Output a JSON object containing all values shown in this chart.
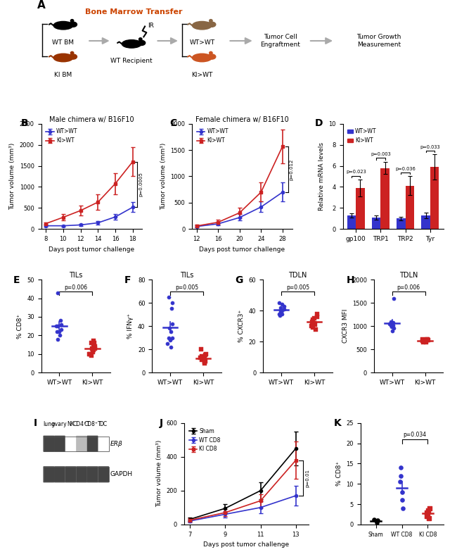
{
  "panel_B": {
    "title": "Male chimera w/ B16F10",
    "xlabel": "Days post tumor challenge",
    "ylabel": "Tumor volume (mm³)",
    "days": [
      8,
      10,
      12,
      14,
      16,
      18
    ],
    "WT_mean": [
      80,
      80,
      100,
      150,
      290,
      520
    ],
    "WT_err": [
      20,
      15,
      20,
      40,
      60,
      120
    ],
    "KI_mean": [
      130,
      280,
      440,
      640,
      1080,
      1600
    ],
    "KI_err": [
      30,
      80,
      120,
      180,
      250,
      350
    ],
    "pval": "p=0.0005",
    "ylim": [
      0,
      2500
    ],
    "yticks": [
      0,
      500,
      1000,
      1500,
      2000,
      2500
    ]
  },
  "panel_C": {
    "title": "Female chimera w/ B16F10",
    "xlabel": "Days post tumor challenge",
    "ylabel": "Tumor volume (mm³)",
    "days": [
      12,
      16,
      20,
      24,
      28
    ],
    "WT_mean": [
      50,
      100,
      220,
      420,
      700
    ],
    "WT_err": [
      20,
      30,
      60,
      100,
      180
    ],
    "KI_mean": [
      60,
      130,
      310,
      700,
      1570
    ],
    "KI_err": [
      20,
      50,
      90,
      180,
      320
    ],
    "pval": "p=0.012",
    "ylim": [
      0,
      2000
    ],
    "yticks": [
      0,
      500,
      1000,
      1500,
      2000
    ]
  },
  "panel_D": {
    "title": "",
    "xlabel": "",
    "ylabel": "Relative mRNA levels",
    "categories": [
      "gp100",
      "TRP1",
      "TRP2",
      "Tyr"
    ],
    "WT_mean": [
      1.3,
      1.1,
      1.0,
      1.3
    ],
    "WT_err": [
      0.2,
      0.2,
      0.15,
      0.25
    ],
    "KI_mean": [
      3.9,
      5.8,
      4.1,
      5.9
    ],
    "KI_err": [
      0.8,
      0.6,
      0.9,
      1.2
    ],
    "pvals": [
      "p=0.023",
      "p=0.003",
      "p=0.036",
      "p=0.033"
    ],
    "ylim": [
      0,
      10
    ],
    "yticks": [
      0,
      2,
      4,
      6,
      8,
      10
    ]
  },
  "panel_E": {
    "title": "TILs",
    "ylabel": "% CD8⁺",
    "ylim": [
      0,
      50
    ],
    "yticks": [
      0,
      10,
      20,
      30,
      40,
      50
    ],
    "pval": "p=0.006",
    "WT_points": [
      23,
      25,
      20,
      28,
      22,
      25,
      18,
      26,
      43,
      22
    ],
    "KI_points": [
      12,
      14,
      10,
      13,
      16,
      11,
      15,
      9,
      13,
      17,
      12,
      10,
      16
    ]
  },
  "panel_F": {
    "title": "TILs",
    "ylabel": "% IFNγ⁺",
    "ylim": [
      0,
      80
    ],
    "yticks": [
      0,
      20,
      40,
      60,
      80
    ],
    "pval": "p=0.005",
    "WT_points": [
      35,
      60,
      30,
      42,
      25,
      55,
      38,
      28,
      22,
      65,
      30
    ],
    "KI_points": [
      12,
      10,
      15,
      8,
      13,
      20,
      9,
      11,
      14,
      10,
      16,
      12
    ]
  },
  "panel_G": {
    "title": "TDLN",
    "ylabel": "% CXCR3⁺",
    "ylim": [
      0,
      60
    ],
    "yticks": [
      0,
      20,
      40,
      60
    ],
    "pval": "p=0.005",
    "WT_points": [
      40,
      42,
      38,
      45,
      41,
      39,
      43,
      37,
      44,
      40,
      38
    ],
    "KI_points": [
      32,
      35,
      28,
      38,
      30,
      33,
      36,
      29,
      34,
      31
    ]
  },
  "panel_H": {
    "title": "TDLN",
    "ylabel": "CXCR3 MFI",
    "ylim": [
      0,
      2000
    ],
    "yticks": [
      0,
      500,
      1000,
      1500,
      2000
    ],
    "pval": "p=0.006",
    "WT_points": [
      1000,
      1050,
      950,
      1100,
      980,
      1020,
      900,
      1080,
      1600,
      1020
    ],
    "KI_points": [
      700,
      650,
      720,
      680,
      710,
      700,
      670,
      690,
      720,
      660
    ]
  },
  "panel_J": {
    "title": "",
    "xlabel": "Days post tumor challenge",
    "ylabel": "Tumor volume (mm³)",
    "days": [
      7,
      9,
      11,
      13
    ],
    "Sham_mean": [
      30,
      95,
      200,
      450
    ],
    "Sham_err": [
      10,
      25,
      50,
      100
    ],
    "WT_mean": [
      20,
      60,
      100,
      170
    ],
    "WT_err": [
      8,
      20,
      35,
      60
    ],
    "KI_mean": [
      25,
      70,
      140,
      380
    ],
    "KI_err": [
      10,
      20,
      40,
      110
    ],
    "pval": "p=0.01",
    "ylim": [
      0,
      600
    ],
    "yticks": [
      0,
      200,
      400,
      600
    ]
  },
  "panel_K": {
    "title": "",
    "ylabel": "% CD8⁺",
    "ylim": [
      0,
      25
    ],
    "yticks": [
      0,
      5,
      10,
      15,
      20,
      25
    ],
    "pval": "p=0.034",
    "Sham_points": [
      1.0,
      0.5,
      0.8,
      1.2
    ],
    "WT_points": [
      10.5,
      4.0,
      14.0,
      6.0,
      12.0,
      8.0
    ],
    "KI_points": [
      2.5,
      1.5,
      4.0,
      3.5,
      2.0,
      3.0
    ]
  },
  "colors": {
    "blue": "#3333CC",
    "red": "#CC2222",
    "black": "#000000"
  }
}
